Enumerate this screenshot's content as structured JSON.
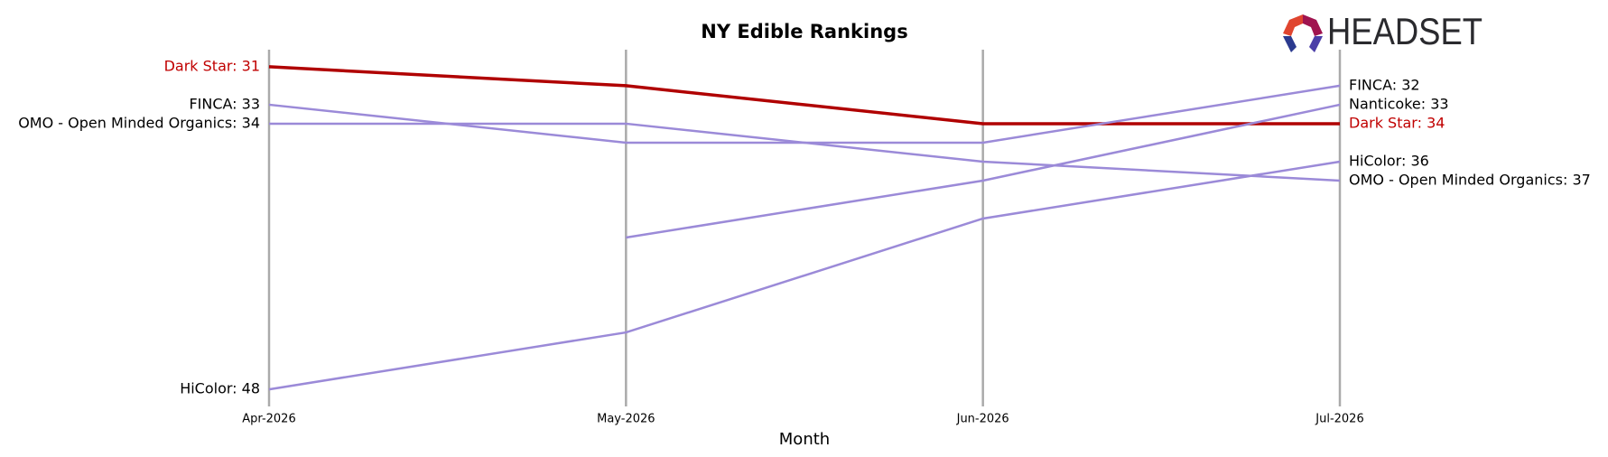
{
  "chart_data": {
    "type": "bump",
    "title": "NY Edible Rankings",
    "x_label": "Month",
    "logo_text": "HEADSET",
    "categories": [
      "Apr-2026",
      "May-2026",
      "Jun-2026",
      "Jul-2026"
    ],
    "ylim": [
      30.1,
      48.9
    ],
    "y_inverted": true,
    "grid": true,
    "series": [
      {
        "name": "Dark Star",
        "color": "#b00000",
        "label_color": "#c00000",
        "width": 3.5,
        "values": [
          31,
          32,
          34,
          34
        ],
        "start_label": "Dark Star: 31",
        "end_label": "Dark Star: 34"
      },
      {
        "name": "FINCA",
        "color": "#9b8ad8",
        "label_color": "#000000",
        "width": 2.5,
        "values": [
          33,
          35,
          35,
          32
        ],
        "start_label": "FINCA: 33",
        "end_label": "FINCA: 32"
      },
      {
        "name": "OMO - Open Minded Organics",
        "color": "#9b8ad8",
        "label_color": "#000000",
        "width": 2.5,
        "values": [
          34,
          34,
          36,
          37
        ],
        "start_label": "OMO - Open Minded Organics: 34",
        "end_label": "OMO - Open Minded Organics: 37"
      },
      {
        "name": "Nanticoke",
        "color": "#9b8ad8",
        "label_color": "#000000",
        "width": 2.5,
        "values": [
          null,
          40,
          37,
          33
        ],
        "end_label": "Nanticoke: 33"
      },
      {
        "name": "HiColor",
        "color": "#9b8ad8",
        "label_color": "#000000",
        "width": 2.5,
        "values": [
          48,
          45,
          39,
          36
        ],
        "start_label": "HiColor: 48",
        "end_label": "HiColor: 36"
      }
    ]
  }
}
